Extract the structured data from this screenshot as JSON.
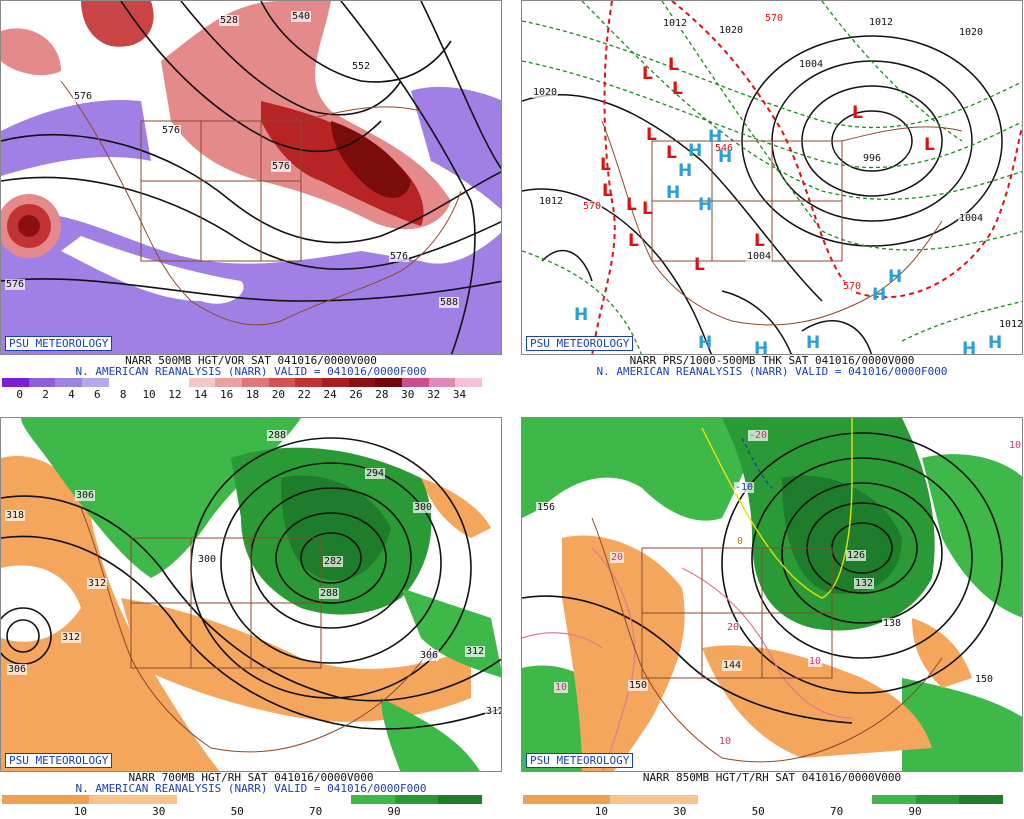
{
  "panels": [
    {
      "title": "NARR 500MB HGT/VOR SAT 041016/0000V000",
      "subtitle": "N. AMERICAN REANALYSIS (NARR) VALID = 041016/0000F000",
      "badge": "PSU METEOROLOGY",
      "scale_labels": [
        "0",
        "2",
        "4",
        "6",
        "8",
        "10",
        "12",
        "14",
        "16",
        "18",
        "20",
        "22",
        "24",
        "26",
        "28",
        "30",
        "32",
        "34"
      ],
      "scale_colors": [
        "#7a1fd6",
        "#8a5fdb",
        "#9d84e3",
        "#b7a8ec",
        "#ffffff",
        "#ffffff",
        "#ffffff",
        "#f4c7c7",
        "#eb9f9f",
        "#e07878",
        "#d35353",
        "#c23232",
        "#a81e1e",
        "#8c1010",
        "#700808",
        "#c94f8f",
        "#e08ab8",
        "#f3c1d9"
      ],
      "map_labels": [
        "528",
        "540",
        "552",
        "576",
        "576",
        "576",
        "576",
        "576",
        "588"
      ]
    },
    {
      "title": "NARR PRS/1000-500MB THK SAT 041016/0000V000",
      "subtitle": "N. AMERICAN REANALYSIS (NARR) VALID = 041016/0000F000",
      "badge": "PSU METEOROLOGY",
      "map_labels": [
        "1012",
        "1020",
        "570",
        "1004",
        "1012",
        "1020",
        "1020",
        "1012",
        "546",
        "570",
        "1004",
        "996",
        "1004",
        "570",
        "1012"
      ],
      "lows": [
        "L",
        "L",
        "L",
        "L",
        "L",
        "L",
        "L",
        "L",
        "L",
        "L",
        "L",
        "L",
        "L",
        "L"
      ],
      "highs": [
        "H",
        "H",
        "H",
        "H",
        "H",
        "H",
        "H",
        "H",
        "H",
        "H",
        "H",
        "H",
        "H",
        "H"
      ]
    },
    {
      "title": "NARR 700MB HGT/RH SAT 041016/0000V000",
      "subtitle": "N. AMERICAN REANALYSIS (NARR) VALID = 041016/0000F000",
      "badge": "PSU METEOROLOGY",
      "scale_labels": [
        "10",
        "30",
        "50",
        "70",
        "90"
      ],
      "scale_colors": [
        "#f0a050",
        "#f0a050",
        "#f7c48a",
        "#f7c48a",
        "#ffffff",
        "#ffffff",
        "#ffffff",
        "#ffffff",
        "#3fb84a",
        "#2a9a36",
        "#1d7d2a"
      ],
      "map_labels": [
        "288",
        "306",
        "318",
        "312",
        "300",
        "282",
        "294",
        "300",
        "288",
        "312",
        "306",
        "312",
        "306",
        "312"
      ]
    },
    {
      "title": "NARR 850MB HGT/T/RH SAT 041016/0000V000",
      "badge": "PSU METEOROLOGY",
      "scale_labels": [
        "10",
        "30",
        "50",
        "70",
        "90"
      ],
      "scale_colors": [
        "#f0a050",
        "#f0a050",
        "#f7c48a",
        "#f7c48a",
        "#ffffff",
        "#ffffff",
        "#ffffff",
        "#ffffff",
        "#3fb84a",
        "#2a9a36",
        "#1d7d2a"
      ],
      "map_labels": [
        "-20",
        "-10",
        "156",
        "0",
        "20",
        "20",
        "126",
        "132",
        "138",
        "144",
        "150",
        "150",
        "10",
        "10",
        "10",
        "10"
      ]
    }
  ]
}
